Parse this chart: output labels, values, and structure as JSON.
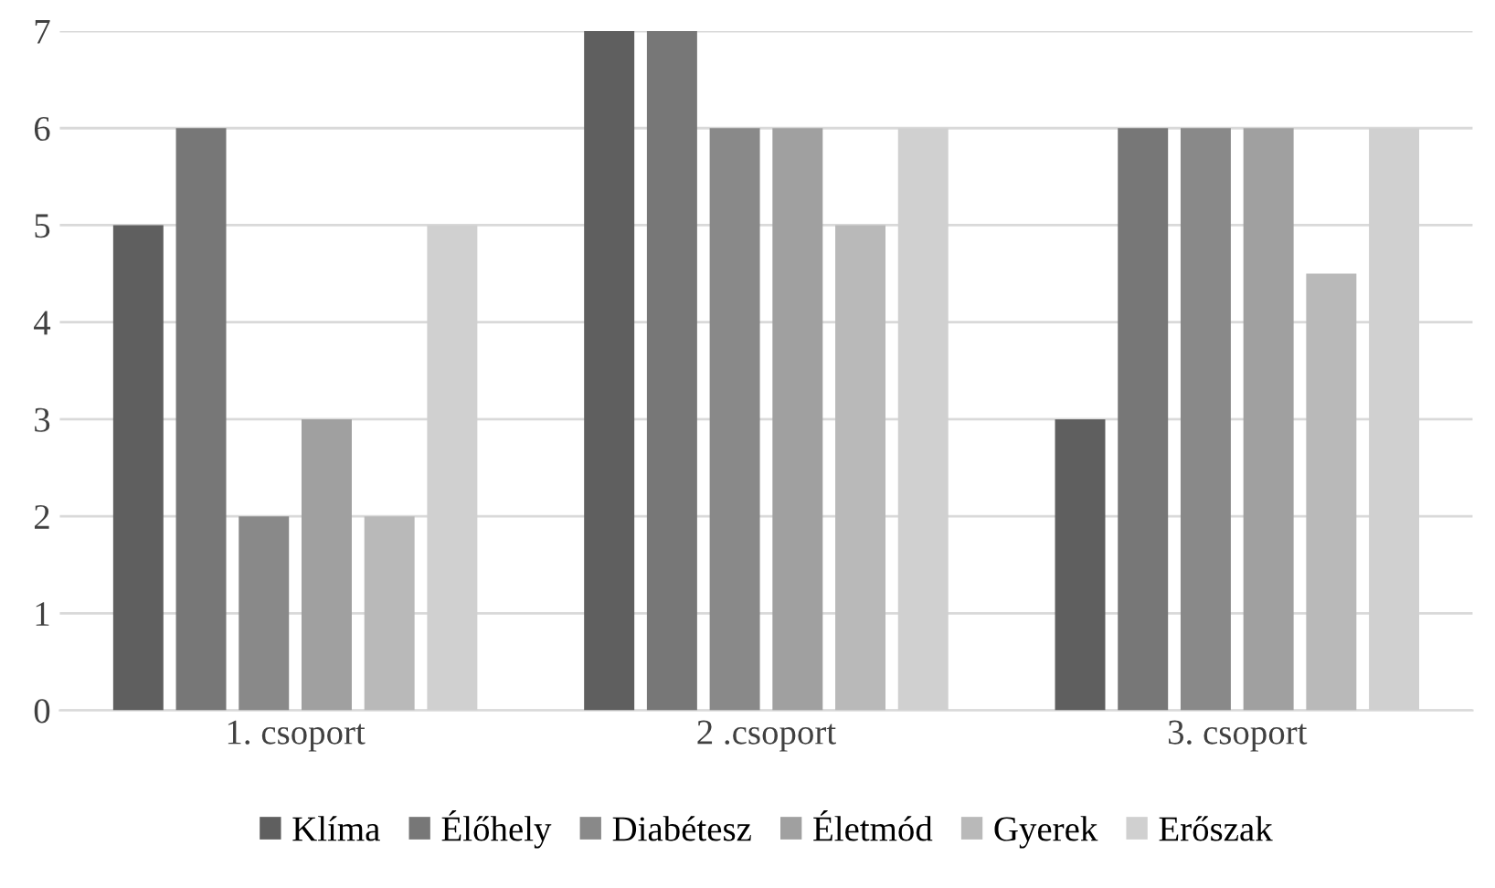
{
  "chart_data": {
    "type": "bar",
    "categories": [
      "1. csoport",
      "2 .csoport",
      "3. csoport"
    ],
    "series": [
      {
        "name": "Klíma",
        "color": "#5f5f5f",
        "values": [
          5,
          7,
          3
        ]
      },
      {
        "name": "Élőhely",
        "color": "#777777",
        "values": [
          6,
          7,
          6
        ]
      },
      {
        "name": "Diabétesz",
        "color": "#898989",
        "values": [
          2,
          6,
          6
        ]
      },
      {
        "name": "Életmód",
        "color": "#a0a0a0",
        "values": [
          3,
          6,
          6
        ]
      },
      {
        "name": "Gyerek",
        "color": "#b9b9b9",
        "values": [
          2,
          5,
          4.5
        ]
      },
      {
        "name": "Erőszak",
        "color": "#d0d0d0",
        "values": [
          5,
          6,
          6
        ]
      }
    ],
    "ylim": [
      0,
      7
    ],
    "yticks": [
      0,
      1,
      2,
      3,
      4,
      5,
      6,
      7
    ],
    "grid": "y",
    "legend": "bottom"
  }
}
